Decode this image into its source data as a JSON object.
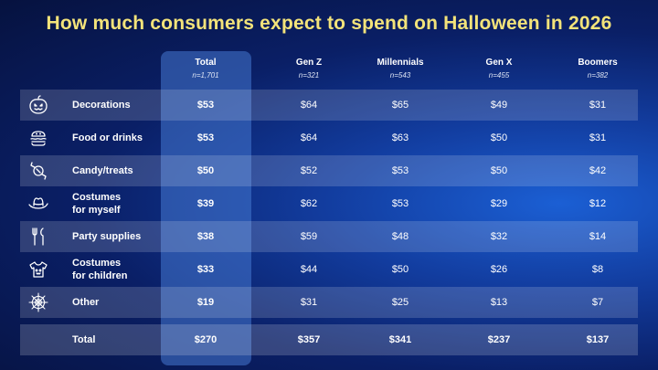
{
  "title": "How much consumers expect to spend on Halloween in 2026",
  "columns": [
    {
      "name": "Total",
      "n": "n=1,701"
    },
    {
      "name": "Gen Z",
      "n": "n=321"
    },
    {
      "name": "Millennials",
      "n": "n=543"
    },
    {
      "name": "Gen X",
      "n": "n=455"
    },
    {
      "name": "Boomers",
      "n": "n=382"
    }
  ],
  "rows": [
    {
      "label": "Decorations",
      "icon": "pumpkin-icon",
      "values": [
        "$53",
        "$64",
        "$65",
        "$49",
        "$31"
      ]
    },
    {
      "label": "Food or drinks",
      "icon": "burger-icon",
      "values": [
        "$53",
        "$64",
        "$63",
        "$50",
        "$31"
      ]
    },
    {
      "label": "Candy/treats",
      "icon": "candy-icon",
      "values": [
        "$50",
        "$52",
        "$53",
        "$50",
        "$42"
      ]
    },
    {
      "label": "Costumes\nfor myself",
      "icon": "cowboy-hat-icon",
      "values": [
        "$39",
        "$62",
        "$53",
        "$29",
        "$12"
      ]
    },
    {
      "label": "Party supplies",
      "icon": "utensils-icon",
      "values": [
        "$38",
        "$59",
        "$48",
        "$32",
        "$14"
      ]
    },
    {
      "label": "Costumes\nfor children",
      "icon": "shirt-icon",
      "values": [
        "$33",
        "$44",
        "$50",
        "$26",
        "$8"
      ]
    },
    {
      "label": "Other",
      "icon": "spiderweb-icon",
      "values": [
        "$19",
        "$31",
        "$25",
        "$13",
        "$7"
      ]
    }
  ],
  "total_row": {
    "label": "Total",
    "values": [
      "$270",
      "$357",
      "$341",
      "$237",
      "$137"
    ]
  },
  "chart_data": {
    "type": "table",
    "title": "How much consumers expect to spend on Halloween in 2026",
    "columns": [
      "Total",
      "Gen Z",
      "Millennials",
      "Gen X",
      "Boomers"
    ],
    "sample_sizes": [
      "n=1,701",
      "n=321",
      "n=543",
      "n=455",
      "n=382"
    ],
    "categories": [
      "Decorations",
      "Food or drinks",
      "Candy/treats",
      "Costumes for myself",
      "Party supplies",
      "Costumes for children",
      "Other",
      "Total"
    ],
    "series": [
      {
        "name": "Total",
        "values": [
          53,
          53,
          50,
          39,
          38,
          33,
          19,
          270
        ]
      },
      {
        "name": "Gen Z",
        "values": [
          64,
          64,
          52,
          62,
          59,
          44,
          31,
          357
        ]
      },
      {
        "name": "Millennials",
        "values": [
          65,
          63,
          53,
          53,
          48,
          50,
          25,
          341
        ]
      },
      {
        "name": "Gen X",
        "values": [
          49,
          50,
          50,
          29,
          32,
          26,
          13,
          237
        ]
      },
      {
        "name": "Boomers",
        "values": [
          31,
          31,
          42,
          12,
          14,
          8,
          7,
          137
        ]
      }
    ],
    "colors": {
      "title": "#f3e37a",
      "background": "#0a1f66",
      "highlight_column": "#4678d2"
    }
  }
}
